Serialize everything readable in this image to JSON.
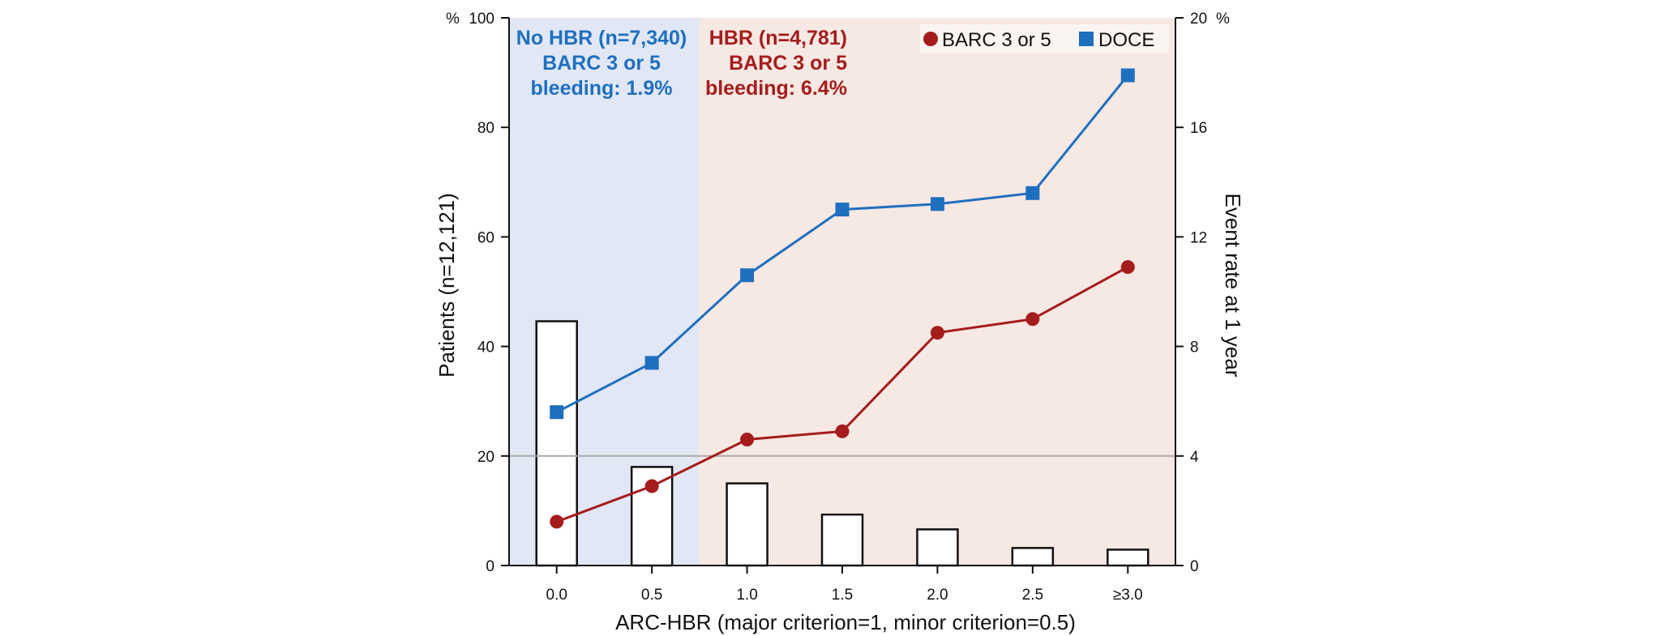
{
  "chart_data": {
    "type": "bar+line",
    "xlabel": "ARC-HBR (major criterion=1, minor criterion=0.5)",
    "ylabel_left": "Patients (n=12,121)",
    "ylabel_right": "Event rate at 1 year",
    "left_unit": "%",
    "right_unit": "%",
    "categories": [
      "0.0",
      "0.5",
      "1.0",
      "1.5",
      "2.0",
      "2.5",
      "≥3.0"
    ],
    "ylim_left": [
      0,
      100
    ],
    "ylim_right": [
      0,
      20
    ],
    "yticks_left": [
      0,
      20,
      40,
      60,
      80,
      100
    ],
    "yticks_right": [
      0,
      4,
      8,
      12,
      16,
      20
    ],
    "bars": {
      "name": "Patients",
      "values": [
        44.6,
        18.0,
        15.0,
        9.3,
        6.6,
        3.2,
        2.9
      ]
    },
    "series": [
      {
        "name": "BARC 3 or 5",
        "color": "#a51c1c",
        "marker": "circle",
        "values": [
          1.6,
          2.9,
          4.6,
          4.9,
          8.5,
          9.0,
          10.9
        ]
      },
      {
        "name": "DOCE",
        "color": "#1f6fbf",
        "marker": "square",
        "values": [
          5.6,
          7.4,
          10.6,
          13.0,
          13.2,
          13.6,
          17.9
        ]
      }
    ],
    "reference_line_right": 4,
    "regions": [
      {
        "name": "no-hbr",
        "x_from": "0.0",
        "x_to": "0.5",
        "color": "#e1e7f5",
        "text_color": "#1f6fbf",
        "lines": [
          "No HBR (n=7,340)",
          "BARC 3 or 5",
          "bleeding: 1.9%"
        ]
      },
      {
        "name": "hbr",
        "x_from": "1.0",
        "x_to": "≥3.0",
        "color": "#f6e8e3",
        "text_color": "#a51c1c",
        "lines": [
          "HBR (n=4,781)",
          "BARC 3 or 5",
          "bleeding: 6.4%"
        ]
      }
    ],
    "legend": {
      "position": "top-right",
      "items": [
        "BARC 3 or 5",
        "DOCE"
      ]
    }
  }
}
